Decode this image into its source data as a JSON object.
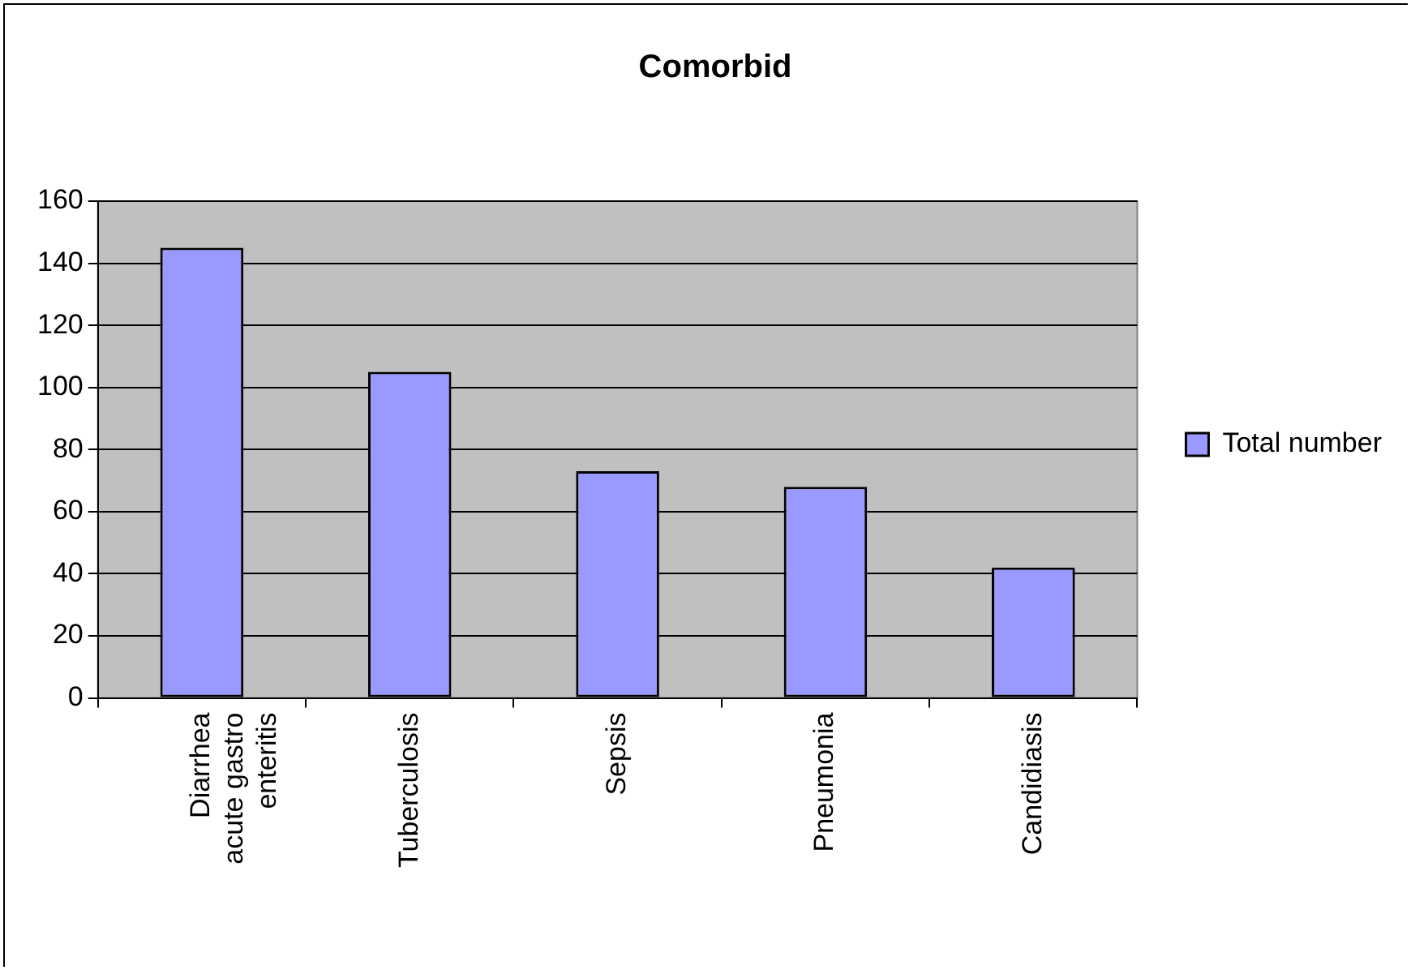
{
  "chart_data": {
    "type": "bar",
    "title": "Comorbid",
    "categories": [
      "Diarrhea acute gastro enteritis",
      "Tuberculosis",
      "Sepsis",
      "Pneumonia",
      "Candidiasis"
    ],
    "series": [
      {
        "name": "Total number",
        "color": "#9999ff",
        "values": [
          145,
          105,
          73,
          68,
          42
        ]
      }
    ],
    "ylim": [
      0,
      160
    ],
    "yticks": [
      0,
      20,
      40,
      60,
      80,
      100,
      120,
      140,
      160
    ],
    "grid": "y",
    "legend": "right"
  }
}
